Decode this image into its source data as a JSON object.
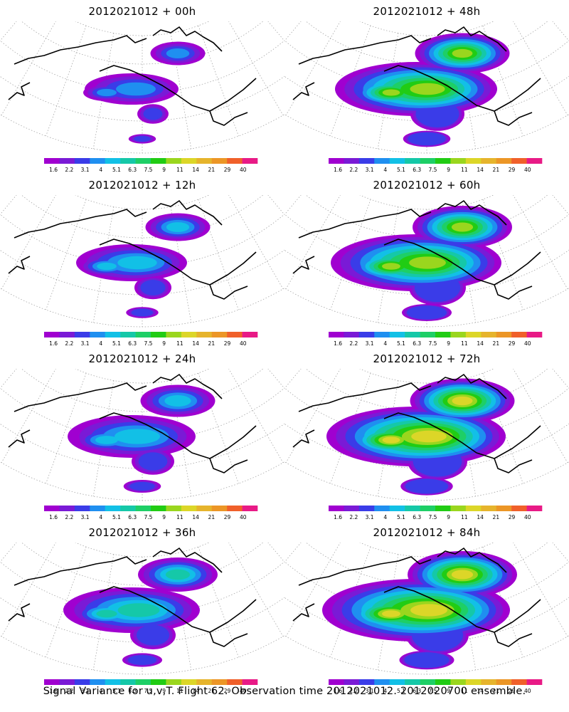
{
  "panels": [
    {
      "title": "2012021012 + 00h",
      "lead": "00h"
    },
    {
      "title": "2012021012 + 48h",
      "lead": "48h"
    },
    {
      "title": "2012021012 + 12h",
      "lead": "12h"
    },
    {
      "title": "2012021012 + 60h",
      "lead": "60h"
    },
    {
      "title": "2012021012 + 24h",
      "lead": "24h"
    },
    {
      "title": "2012021012 + 72h",
      "lead": "72h"
    },
    {
      "title": "2012021012 + 36h",
      "lead": "36h"
    },
    {
      "title": "2012021012 + 84h",
      "lead": "84h"
    }
  ],
  "colorbar": {
    "labels": [
      "1.6",
      "2.2",
      "3.1",
      "4",
      "5.1",
      "6.3",
      "7.5",
      "9",
      "11",
      "14",
      "21",
      "29",
      "40"
    ],
    "colors": [
      "#a000d0",
      "#7a1ad6",
      "#3a3ce8",
      "#1f8ff0",
      "#12c0e6",
      "#15c8a8",
      "#1ecf66",
      "#21cc14",
      "#9ad61e",
      "#dcd628",
      "#e6b42c",
      "#ec9626",
      "#f0602a",
      "#e81a86"
    ]
  },
  "footer": "Signal Variance for u,v,T. Flight 62. Observation time 2012021012. 2012020700 ensemble."
}
